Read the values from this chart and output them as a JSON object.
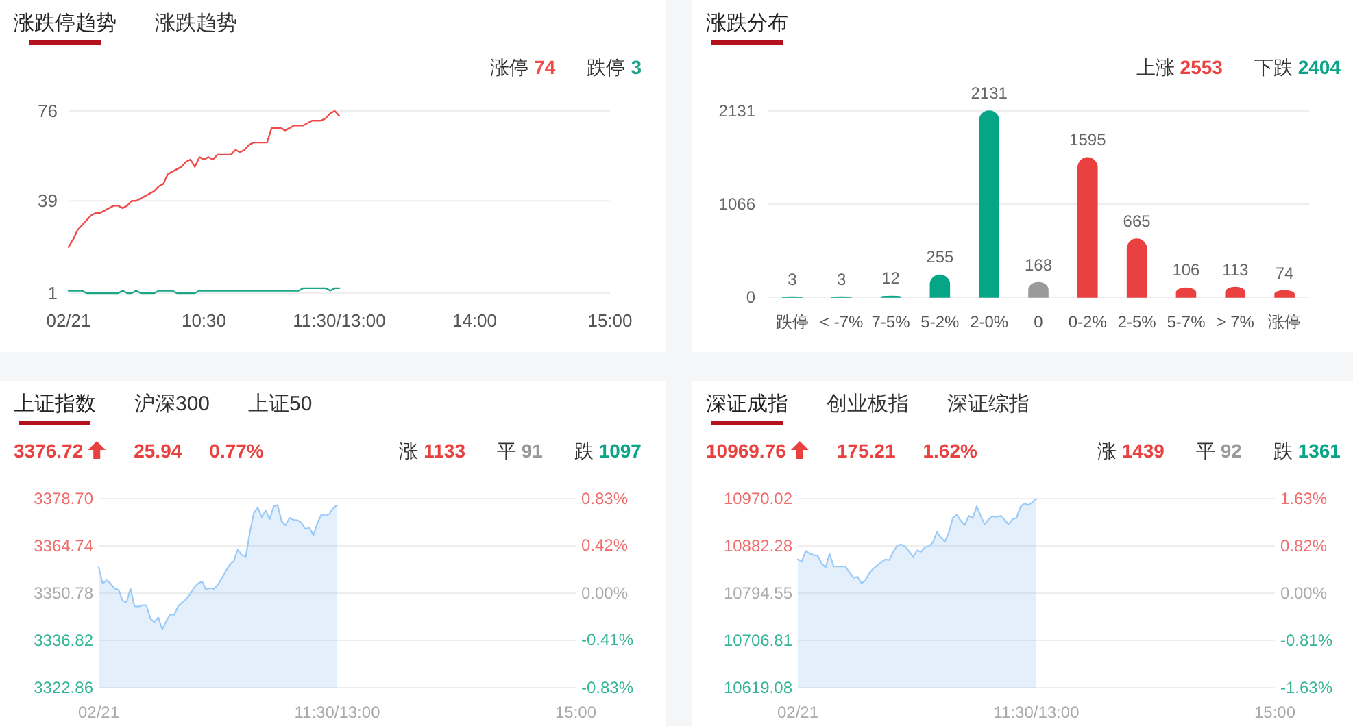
{
  "chart_data": [
    {
      "type": "line",
      "title": "涨跌停趋势",
      "annotations": [
        "涨跌趋势",
        "74",
        "3"
      ],
      "legend": "top right",
      "grid": "y",
      "categories": [
        "02/21",
        null,
        null,
        null,
        null,
        null,
        null,
        null,
        null,
        null,
        null,
        null,
        null,
        null,
        null,
        null,
        null,
        null,
        null,
        null,
        null,
        null,
        null,
        null,
        null,
        null,
        null,
        null,
        null,
        null,
        "10:30",
        null,
        null,
        null,
        null,
        null,
        null,
        null,
        null,
        null,
        null,
        null,
        null,
        null,
        null,
        null,
        null,
        null,
        null,
        null,
        null,
        null,
        null,
        null,
        null,
        null,
        null,
        null,
        null,
        null,
        "11:30/13:00",
        null,
        null,
        null,
        null,
        null,
        null,
        null,
        null,
        null,
        null,
        null,
        null,
        null,
        null,
        null,
        null,
        null,
        null,
        null,
        null,
        null,
        null,
        null,
        null,
        null,
        null,
        null,
        null,
        null,
        "14:00",
        null,
        null,
        null,
        null,
        null,
        null,
        null,
        null,
        null,
        null,
        null,
        null,
        null,
        null,
        null,
        null,
        null,
        null,
        null,
        null,
        null,
        null,
        null,
        null,
        null,
        null,
        null,
        null,
        null,
        "15:00"
      ],
      "ylim": [
        1,
        76
      ],
      "yticks": [
        1,
        39,
        76
      ],
      "series": [
        {
          "name": "涨停",
          "color": "#ef4b4b",
          "values": [
            20,
            23,
            27,
            29,
            31,
            33,
            34,
            34,
            35,
            36,
            37,
            37,
            36,
            37,
            39,
            39,
            40,
            41,
            42,
            43,
            45,
            46,
            50,
            51,
            52,
            53,
            55,
            56,
            53,
            57,
            56,
            57,
            56,
            58,
            58,
            58,
            58,
            60,
            59,
            60,
            62,
            63,
            63,
            63,
            63,
            69,
            69,
            69,
            68,
            69,
            70,
            70,
            70,
            71,
            72,
            72,
            72,
            73,
            75,
            76,
            74,
            null,
            null,
            null,
            null,
            null,
            null,
            null,
            null,
            null,
            null,
            null,
            null,
            null,
            null,
            null,
            null,
            null,
            null,
            null,
            null,
            null,
            null,
            null,
            null,
            null,
            null,
            null,
            null,
            null,
            null,
            null,
            null,
            null,
            null,
            null,
            null,
            null,
            null,
            null,
            null,
            null,
            null,
            null,
            null,
            null,
            null,
            null,
            null,
            null,
            null,
            null,
            null,
            null,
            null,
            null,
            null,
            null,
            null,
            null,
            null
          ]
        },
        {
          "name": "跌停",
          "color": "#1ca587",
          "values": [
            2,
            2,
            2,
            2,
            1,
            1,
            1,
            1,
            1,
            1,
            1,
            1,
            2,
            1,
            1,
            2,
            1,
            1,
            1,
            1,
            2,
            2,
            2,
            2,
            1,
            1,
            1,
            1,
            1,
            2,
            2,
            2,
            2,
            2,
            2,
            2,
            2,
            2,
            2,
            2,
            2,
            2,
            2,
            2,
            2,
            2,
            2,
            2,
            2,
            2,
            2,
            2,
            3,
            3,
            3,
            3,
            3,
            3,
            2,
            3,
            3,
            null,
            null,
            null,
            null,
            null,
            null,
            null,
            null,
            null,
            null,
            null,
            null,
            null,
            null,
            null,
            null,
            null,
            null,
            null,
            null,
            null,
            null,
            null,
            null,
            null,
            null,
            null,
            null,
            null,
            null,
            null,
            null,
            null,
            null,
            null,
            null,
            null,
            null,
            null,
            null,
            null,
            null,
            null,
            null,
            null,
            null,
            null,
            null,
            null,
            null,
            null,
            null,
            null,
            null,
            null,
            null,
            null,
            null,
            null,
            null
          ]
        }
      ]
    },
    {
      "type": "bar",
      "title": "涨跌分布",
      "annotations": [
        "上涨 2553",
        "下跌 2404"
      ],
      "grid": "y",
      "data_labels": true,
      "categories": [
        "跌停",
        "< -7%",
        "7-5%",
        "5-2%",
        "2-0%",
        "0",
        "0-2%",
        "2-5%",
        "5-7%",
        "> 7%",
        "涨停"
      ],
      "values": [
        3,
        3,
        12,
        255,
        2131,
        168,
        1595,
        665,
        106,
        113,
        74
      ],
      "colors": [
        "#05a586",
        "#05a586",
        "#05a586",
        "#05a586",
        "#05a586",
        "#9a9a9a",
        "#e94040",
        "#e94040",
        "#e94040",
        "#e94040",
        "#e94040"
      ],
      "ylim": [
        0,
        2131
      ],
      "yticks": [
        0,
        1066,
        2131
      ]
    },
    {
      "type": "area",
      "title": "上证指数",
      "annotations": [
        "沪深300",
        "上证50",
        "3376.72",
        "25.94",
        "0.77%",
        "涨 1133",
        "平 91",
        "跌 1097"
      ],
      "grid": "y",
      "categories": [
        "02/21",
        null,
        null,
        null,
        null,
        null,
        null,
        null,
        null,
        null,
        null,
        null,
        null,
        null,
        null,
        null,
        null,
        null,
        null,
        null,
        null,
        null,
        null,
        null,
        null,
        null,
        null,
        null,
        null,
        null,
        null,
        null,
        null,
        null,
        null,
        null,
        null,
        null,
        null,
        null,
        null,
        null,
        null,
        null,
        null,
        null,
        null,
        null,
        null,
        null,
        null,
        null,
        null,
        null,
        null,
        null,
        null,
        null,
        null,
        null,
        "11:30/13:00",
        null,
        null,
        null,
        null,
        null,
        null,
        null,
        null,
        null,
        null,
        null,
        null,
        null,
        null,
        null,
        null,
        null,
        null,
        null,
        null,
        null,
        null,
        null,
        null,
        null,
        null,
        null,
        null,
        null,
        null,
        null,
        null,
        null,
        null,
        null,
        null,
        null,
        null,
        null,
        null,
        null,
        null,
        null,
        null,
        null,
        null,
        null,
        null,
        null,
        null,
        null,
        null,
        null,
        null,
        null,
        null,
        null,
        null,
        null,
        "15:00"
      ],
      "ylim": [
        3322.86,
        3378.7
      ],
      "yticks": [
        3322.86,
        3336.82,
        3350.78,
        3364.74,
        {
          "value": 3378.7,
          "label": "3378.70"
        }
      ],
      "y2lim": [
        -0.83,
        0.83
      ],
      "y2ticks": [
        {
          "value": -0.83,
          "label": "-0.83%"
        },
        {
          "value": -0.41,
          "label": "-0.41%"
        },
        {
          "value": 0,
          "label": "0.00%"
        },
        {
          "value": 0.42,
          "label": "0.42%"
        },
        {
          "value": 0.83,
          "label": "0.83%"
        }
      ],
      "series": [
        {
          "color": "#9ccaf6",
          "values": [
            3358.4,
            3353.6,
            3354.6,
            3353.6,
            3352.1,
            3351.8,
            3348.6,
            3348.0,
            3352.1,
            3346.9,
            3346.8,
            3347.2,
            3347.2,
            3343.2,
            3342.2,
            3343.6,
            3340.0,
            3342.5,
            3344.5,
            3344.4,
            3347.0,
            3348.0,
            3349.0,
            3350.5,
            3352.4,
            3353.6,
            3354.2,
            3351.8,
            3352.3,
            3352.0,
            3353.3,
            3355.2,
            3357.4,
            3359.2,
            3360.3,
            3363.7,
            3362.0,
            3361.6,
            3368.6,
            3374.3,
            3376.2,
            3373.2,
            3375.2,
            3372.6,
            3376.4,
            3376.8,
            3372.0,
            3370.8,
            3373.0,
            3372.4,
            3372.3,
            3371.6,
            3369.7,
            3370.1,
            3367.9,
            3371.4,
            3374.0,
            3373.7,
            3374.1,
            3376.0,
            3376.72,
            null,
            null,
            null,
            null,
            null,
            null,
            null,
            null,
            null,
            null,
            null,
            null,
            null,
            null,
            null,
            null,
            null,
            null,
            null,
            null,
            null,
            null,
            null,
            null,
            null,
            null,
            null,
            null,
            null,
            null,
            null,
            null,
            null,
            null,
            null,
            null,
            null,
            null,
            null,
            null,
            null,
            null,
            null,
            null,
            null,
            null,
            null,
            null,
            null,
            null,
            null,
            null,
            null,
            null,
            null,
            null,
            null,
            null,
            null,
            null
          ]
        }
      ]
    },
    {
      "type": "area",
      "title": "深证成指",
      "annotations": [
        "创业板指",
        "深证综指",
        "10969.76",
        "175.21",
        "1.62%",
        "涨 1439",
        "平 92",
        "跌 1361"
      ],
      "grid": "y",
      "categories": [
        "02/21",
        null,
        null,
        null,
        null,
        null,
        null,
        null,
        null,
        null,
        null,
        null,
        null,
        null,
        null,
        null,
        null,
        null,
        null,
        null,
        null,
        null,
        null,
        null,
        null,
        null,
        null,
        null,
        null,
        null,
        null,
        null,
        null,
        null,
        null,
        null,
        null,
        null,
        null,
        null,
        null,
        null,
        null,
        null,
        null,
        null,
        null,
        null,
        null,
        null,
        null,
        null,
        null,
        null,
        null,
        null,
        null,
        null,
        null,
        null,
        "11:30/13:00",
        null,
        null,
        null,
        null,
        null,
        null,
        null,
        null,
        null,
        null,
        null,
        null,
        null,
        null,
        null,
        null,
        null,
        null,
        null,
        null,
        null,
        null,
        null,
        null,
        null,
        null,
        null,
        null,
        null,
        null,
        null,
        null,
        null,
        null,
        null,
        null,
        null,
        null,
        null,
        null,
        null,
        null,
        null,
        null,
        null,
        null,
        null,
        null,
        null,
        null,
        null,
        null,
        null,
        null,
        null,
        null,
        null,
        null,
        null,
        "15:00"
      ],
      "ylim": [
        10619.08,
        10970.02
      ],
      "yticks": [
        10619.08,
        10706.81,
        10794.55,
        10882.28,
        10970.02
      ],
      "y2lim": [
        -1.63,
        1.63
      ],
      "y2ticks": [
        {
          "value": -1.63,
          "label": "-1.63%"
        },
        {
          "value": -0.81,
          "label": "-0.81%"
        },
        {
          "value": 0,
          "label": "0.00%"
        },
        {
          "value": 0.82,
          "label": "0.82%"
        },
        {
          "value": 1.63,
          "label": "1.63%"
        }
      ],
      "series": [
        {
          "color": "#9ccaf6",
          "values": [
            10857,
            10854,
            10873,
            10868,
            10865,
            10864,
            10850,
            10842,
            10868,
            10844,
            10844,
            10844,
            10844,
            10833,
            10823,
            10825,
            10813,
            10818,
            10832,
            10840,
            10846,
            10852,
            10857,
            10856,
            10871,
            10883,
            10885,
            10881,
            10872,
            10862,
            10874,
            10871,
            10880,
            10882,
            10889,
            10908,
            10898,
            10890,
            10907,
            10934,
            10940,
            10929,
            10921,
            10938,
            10934,
            10956,
            10938,
            10922,
            10932,
            10937,
            10936,
            10938,
            10931,
            10922,
            10932,
            10934,
            10955,
            10961,
            10958,
            10963,
            10969.76,
            null,
            null,
            null,
            null,
            null,
            null,
            null,
            null,
            null,
            null,
            null,
            null,
            null,
            null,
            null,
            null,
            null,
            null,
            null,
            null,
            null,
            null,
            null,
            null,
            null,
            null,
            null,
            null,
            null,
            null,
            null,
            null,
            null,
            null,
            null,
            null,
            null,
            null,
            null,
            null,
            null,
            null,
            null,
            null,
            null,
            null,
            null,
            null,
            null,
            null,
            null,
            null,
            null,
            null,
            null,
            null,
            null,
            null,
            null,
            null
          ]
        }
      ]
    }
  ]
}
